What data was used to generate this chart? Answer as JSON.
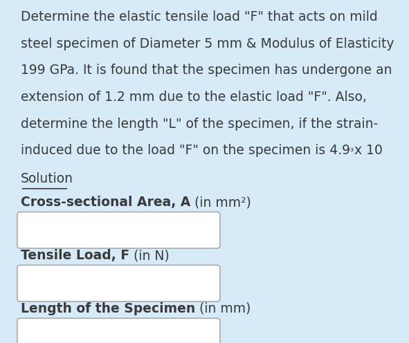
{
  "background_color": "#d6eaf8",
  "text_color": "#3a3a3a",
  "para_lines": [
    "Determine the elastic tensile load \"F\" that acts on mild",
    "steel specimen of Diameter 5 mm & Modulus of Elasticity",
    "199 GPa. It is found that the specimen has undergone an",
    "extension of 1.2 mm due to the elastic load \"F\". Also,",
    "determine the length \"L\" of the specimen, if the strain-",
    "induced due to the load \"F\" on the specimen is 4.9 x 10"
  ],
  "superscript": "⁻³.",
  "solution_label": "Solution",
  "labels": [
    {
      "bold": "Cross-sectional Area, A",
      "normal": " (in mm²)"
    },
    {
      "bold": "Tensile Load, F",
      "normal": " (in N)"
    },
    {
      "bold": "Length of the Specimen",
      "normal": " (in mm)"
    }
  ],
  "box_color": "#ffffff",
  "box_border_color": "#aaaaaa",
  "font_size_para": 13.5,
  "font_size_label": 13.5
}
